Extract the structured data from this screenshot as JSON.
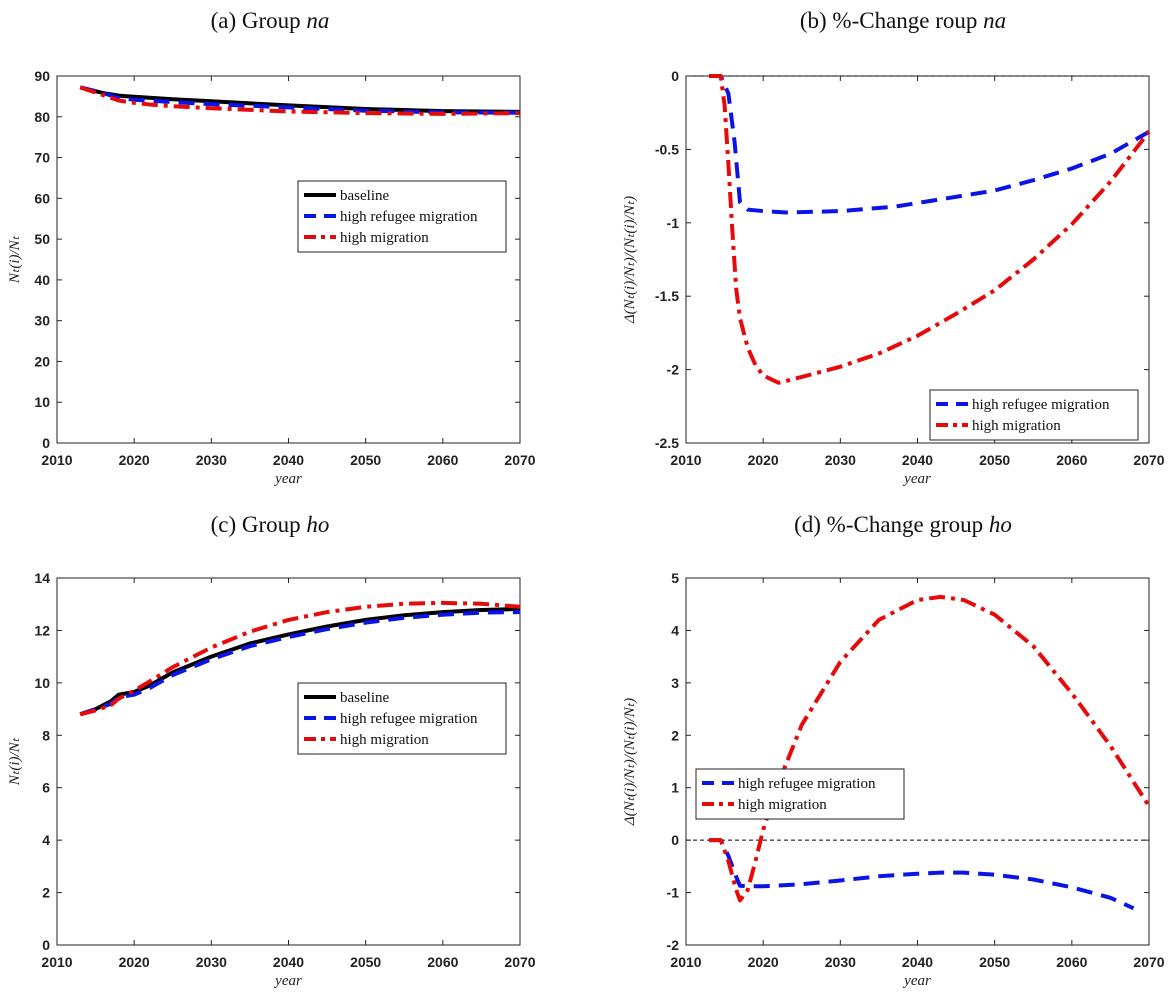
{
  "chart_data": [
    {
      "type": "line",
      "panel_label": "(a)",
      "title_text": "Group",
      "title_group": "na",
      "xlabel": "year",
      "ylabel": "N_t(i)/N_t",
      "ylabel_tex": "Nₜ(i)/Nₜ",
      "xlim": [
        2010,
        2070
      ],
      "ylim": [
        0,
        90
      ],
      "xticks": [
        2010,
        2020,
        2030,
        2040,
        2050,
        2060,
        2070
      ],
      "yticks": [
        0,
        10,
        20,
        30,
        40,
        50,
        60,
        70,
        80,
        90
      ],
      "zero_line": false,
      "legend_position": "center-right",
      "series": [
        {
          "name": "baseline",
          "color": "#000000",
          "dash": "solid",
          "x": [
            2013,
            2016,
            2018,
            2020,
            2025,
            2030,
            2040,
            2050,
            2060,
            2070
          ],
          "y": [
            87.2,
            85.8,
            85.2,
            84.9,
            84.3,
            83.8,
            82.8,
            81.9,
            81.4,
            81.2
          ]
        },
        {
          "name": "high refugee migration",
          "color": "#0a14e6",
          "dash": "dash",
          "x": [
            2013,
            2016,
            2018,
            2020,
            2025,
            2030,
            2040,
            2050,
            2060,
            2070
          ],
          "y": [
            87.2,
            85.8,
            84.6,
            84.2,
            83.6,
            83.1,
            82.3,
            81.5,
            81.1,
            81.0
          ]
        },
        {
          "name": "high migration",
          "color": "#e60a0a",
          "dash": "dashdot",
          "x": [
            2013,
            2016,
            2018,
            2020,
            2022,
            2025,
            2030,
            2040,
            2050,
            2060,
            2070
          ],
          "y": [
            87.2,
            85.3,
            84.0,
            83.4,
            83.0,
            82.6,
            82.1,
            81.3,
            80.9,
            80.7,
            80.9
          ]
        }
      ]
    },
    {
      "type": "line",
      "panel_label": "(b)",
      "title_text": "%-Change roup",
      "title_group": "na",
      "xlabel": "year",
      "ylabel": "Δ(N_t(i)/N_t)/(N_t(i)/N_t)",
      "ylabel_tex": "Δ(Nₜ(i)/Nₜ)/(Nₜ(i)/Nₜ)",
      "xlim": [
        2010,
        2070
      ],
      "ylim": [
        -2.5,
        0
      ],
      "xticks": [
        2010,
        2020,
        2030,
        2040,
        2050,
        2060,
        2070
      ],
      "yticks": [
        0,
        -0.5,
        -1,
        -1.5,
        -2,
        -2.5
      ],
      "ytick_labels": [
        "0",
        "-0.5",
        "-1",
        "-1.5",
        "-2",
        "-2.5"
      ],
      "zero_line": true,
      "legend_position": "bottom-right",
      "series": [
        {
          "name": "high refugee migration",
          "color": "#0a14e6",
          "dash": "dash",
          "x": [
            2013,
            2014.5,
            2015.5,
            2016.3,
            2017,
            2018,
            2020,
            2023,
            2030,
            2037,
            2043,
            2050,
            2055,
            2060,
            2065,
            2070
          ],
          "y": [
            0,
            0,
            -0.12,
            -0.45,
            -0.86,
            -0.91,
            -0.92,
            -0.93,
            -0.92,
            -0.89,
            -0.84,
            -0.78,
            -0.71,
            -0.63,
            -0.53,
            -0.38
          ]
        },
        {
          "name": "high migration",
          "color": "#e60a0a",
          "dash": "dashdot",
          "x": [
            2013,
            2014.5,
            2015,
            2015.5,
            2016,
            2016.5,
            2017,
            2018,
            2019,
            2020,
            2022,
            2025,
            2030,
            2035,
            2040,
            2045,
            2050,
            2055,
            2060,
            2065,
            2070
          ],
          "y": [
            0,
            0,
            -0.2,
            -0.6,
            -1.05,
            -1.45,
            -1.65,
            -1.85,
            -1.97,
            -2.04,
            -2.09,
            -2.05,
            -1.98,
            -1.89,
            -1.77,
            -1.62,
            -1.46,
            -1.25,
            -1.01,
            -0.72,
            -0.38
          ]
        }
      ]
    },
    {
      "type": "line",
      "panel_label": "(c)",
      "title_text": "Group",
      "title_group": "ho",
      "xlabel": "year",
      "ylabel": "N_t(i)/N_t",
      "ylabel_tex": "Nₜ(i)/Nₜ",
      "xlim": [
        2010,
        2070
      ],
      "ylim": [
        0,
        14
      ],
      "xticks": [
        2010,
        2020,
        2030,
        2040,
        2050,
        2060,
        2070
      ],
      "yticks": [
        0,
        2,
        4,
        6,
        8,
        10,
        12,
        14
      ],
      "zero_line": false,
      "legend_position": "center-right",
      "series": [
        {
          "name": "baseline",
          "color": "#000000",
          "dash": "solid",
          "x": [
            2013,
            2015,
            2017,
            2018,
            2020,
            2022,
            2025,
            2030,
            2035,
            2040,
            2045,
            2050,
            2055,
            2060,
            2065,
            2070
          ],
          "y": [
            8.8,
            9.0,
            9.3,
            9.55,
            9.65,
            9.9,
            10.4,
            11.0,
            11.5,
            11.85,
            12.15,
            12.4,
            12.58,
            12.7,
            12.78,
            12.82
          ]
        },
        {
          "name": "high refugee migration",
          "color": "#0a14e6",
          "dash": "dash",
          "x": [
            2013,
            2015,
            2017,
            2018,
            2020,
            2022,
            2025,
            2030,
            2035,
            2040,
            2045,
            2050,
            2055,
            2060,
            2065,
            2070
          ],
          "y": [
            8.8,
            9.0,
            9.2,
            9.45,
            9.55,
            9.8,
            10.3,
            10.9,
            11.4,
            11.75,
            12.05,
            12.3,
            12.48,
            12.6,
            12.68,
            12.7
          ]
        },
        {
          "name": "high migration",
          "color": "#e60a0a",
          "dash": "dashdot",
          "x": [
            2013,
            2015,
            2017,
            2018,
            2020,
            2022,
            2025,
            2030,
            2035,
            2040,
            2045,
            2050,
            2055,
            2060,
            2065,
            2070
          ],
          "y": [
            8.8,
            8.95,
            9.15,
            9.4,
            9.7,
            10.05,
            10.6,
            11.35,
            11.95,
            12.4,
            12.7,
            12.9,
            13.02,
            13.05,
            13.02,
            12.9
          ]
        }
      ]
    },
    {
      "type": "line",
      "panel_label": "(d)",
      "title_text": "%-Change group",
      "title_group": "ho",
      "xlabel": "year",
      "ylabel": "Δ(N_t(i)/N_t)/(N_t(i)/N_t)",
      "ylabel_tex": "Δ(Nₜ(i)/Nₜ)/(Nₜ(i)/Nₜ)",
      "xlim": [
        2010,
        2070
      ],
      "ylim": [
        -2,
        5
      ],
      "xticks": [
        2010,
        2020,
        2030,
        2040,
        2050,
        2060,
        2070
      ],
      "yticks": [
        -2,
        -1,
        0,
        1,
        2,
        3,
        4,
        5
      ],
      "zero_line": true,
      "legend_position": "center-left",
      "series": [
        {
          "name": "high refugee migration",
          "color": "#0a14e6",
          "dash": "dash",
          "x": [
            2013,
            2014.5,
            2015.5,
            2016.5,
            2017,
            2018,
            2020,
            2025,
            2030,
            2035,
            2040,
            2043,
            2046,
            2050,
            2055,
            2060,
            2065,
            2068
          ],
          "y": [
            0,
            0,
            -0.3,
            -0.7,
            -0.87,
            -0.88,
            -0.88,
            -0.84,
            -0.77,
            -0.69,
            -0.64,
            -0.62,
            -0.62,
            -0.66,
            -0.75,
            -0.9,
            -1.1,
            -1.3
          ]
        },
        {
          "name": "high migration",
          "color": "#e60a0a",
          "dash": "dashdot",
          "x": [
            2013,
            2014.5,
            2015.5,
            2016.5,
            2017,
            2018,
            2019,
            2020,
            2022,
            2025,
            2030,
            2035,
            2040,
            2043,
            2046,
            2050,
            2055,
            2060,
            2065,
            2070
          ],
          "y": [
            0,
            0,
            -0.4,
            -0.95,
            -1.15,
            -0.95,
            -0.4,
            0.2,
            1.1,
            2.2,
            3.4,
            4.2,
            4.58,
            4.64,
            4.58,
            4.3,
            3.7,
            2.8,
            1.8,
            0.65
          ]
        }
      ]
    }
  ]
}
